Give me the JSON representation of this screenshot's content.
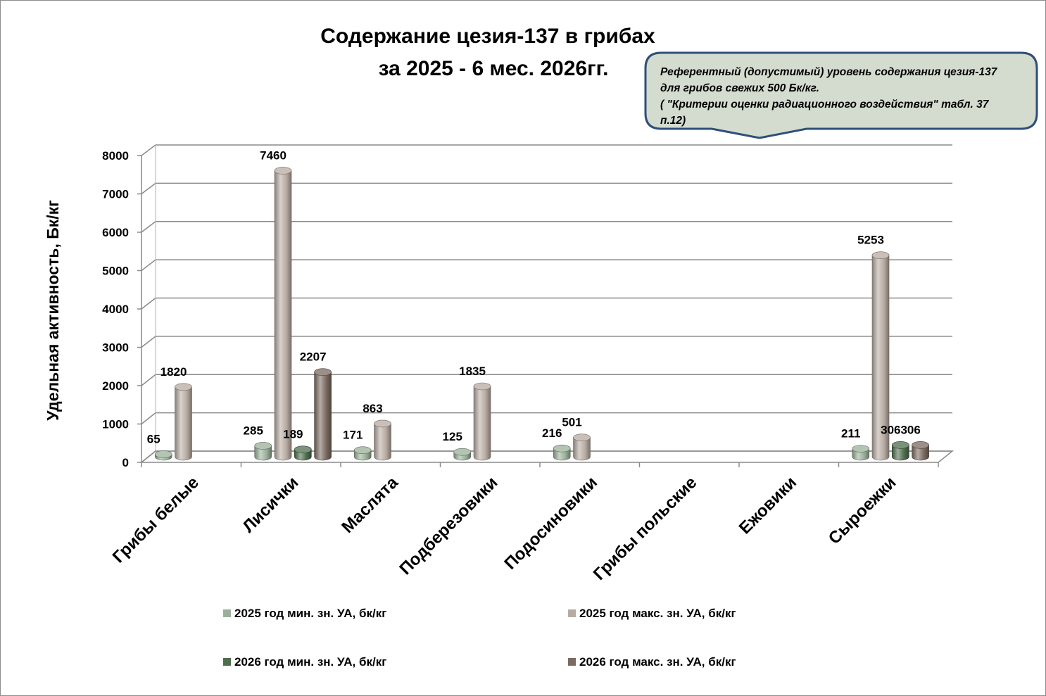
{
  "chart_data": {
    "type": "bar",
    "title_lines": [
      "Содержание цезия-137 в грибах",
      "за 2025 - 6 мес. 2026гг."
    ],
    "ylabel": "Удельная активность, Бк/кг",
    "xlabel": "",
    "ylim": [
      0,
      8000
    ],
    "yticks": [
      0,
      1000,
      2000,
      3000,
      4000,
      5000,
      6000,
      7000,
      8000
    ],
    "grid": true,
    "legend_position": "bottom",
    "categories": [
      "Грибы белые",
      "Лисички",
      "Маслята",
      "Подберезовики",
      "Подосиновики",
      "Грибы польские",
      "Ежовики",
      "Сыроежки"
    ],
    "series": [
      {
        "name": "2025 год мин. зн. УА, бк/кг",
        "color": "#9bb09a",
        "values": [
          65,
          285,
          171,
          125,
          216,
          null,
          null,
          211
        ]
      },
      {
        "name": "2025 год макс. зн. УА, бк/кг",
        "color": "#b8aba2",
        "values": [
          1820,
          7460,
          863,
          1835,
          501,
          null,
          null,
          5253
        ]
      },
      {
        "name": "2026 год мин. зн. УА, бк/кг",
        "color": "#4f6e4d",
        "values": [
          null,
          189,
          null,
          null,
          null,
          null,
          null,
          306
        ]
      },
      {
        "name": "2026 год макс. зн. УА, бк/кг",
        "color": "#7a6a60",
        "values": [
          null,
          2207,
          null,
          null,
          null,
          null,
          null,
          306
        ]
      }
    ],
    "annotation": {
      "lines": [
        "Референтный (допустимый) уровень содержания цезия-137",
        "для грибов свежих  500 Бк/кг.",
        "( \"Критерии оценки радиационного воздействия\" табл. 37",
        "п.12)"
      ],
      "fill": "#d4dccf",
      "border": "#2f4f7a"
    }
  }
}
